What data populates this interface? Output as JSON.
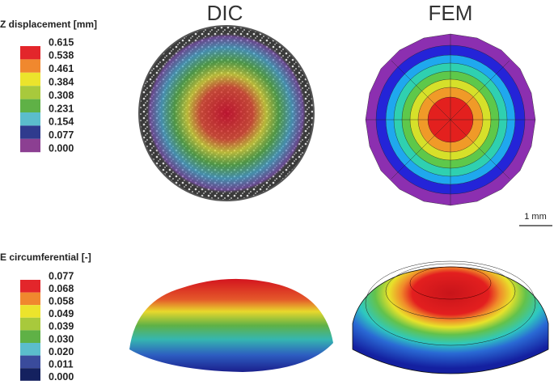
{
  "titles": [
    "DIC",
    "FEM"
  ],
  "legends": [
    {
      "title": "Z displacement [mm]",
      "labels": [
        "0.615",
        "0.538",
        "0.461",
        "0.384",
        "0.308",
        "0.231",
        "0.154",
        "0.077",
        "0.000"
      ],
      "colors": [
        "#e3262b",
        "#f0882e",
        "#ece42c",
        "#a8c93c",
        "#5fb146",
        "#5bbdcc",
        "#2f3b8e",
        "#8c3f92"
      ]
    },
    {
      "title": "E circumferential [-]",
      "labels": [
        "0.077",
        "0.068",
        "0.058",
        "0.049",
        "0.039",
        "0.030",
        "0.020",
        "0.011",
        "0.000"
      ],
      "colors": [
        "#e3262b",
        "#f0882e",
        "#ece42c",
        "#a8c93c",
        "#5fb146",
        "#5bbdcc",
        "#3a4b9c",
        "#14215f"
      ]
    }
  ],
  "scale_bar": "1 mm"
}
